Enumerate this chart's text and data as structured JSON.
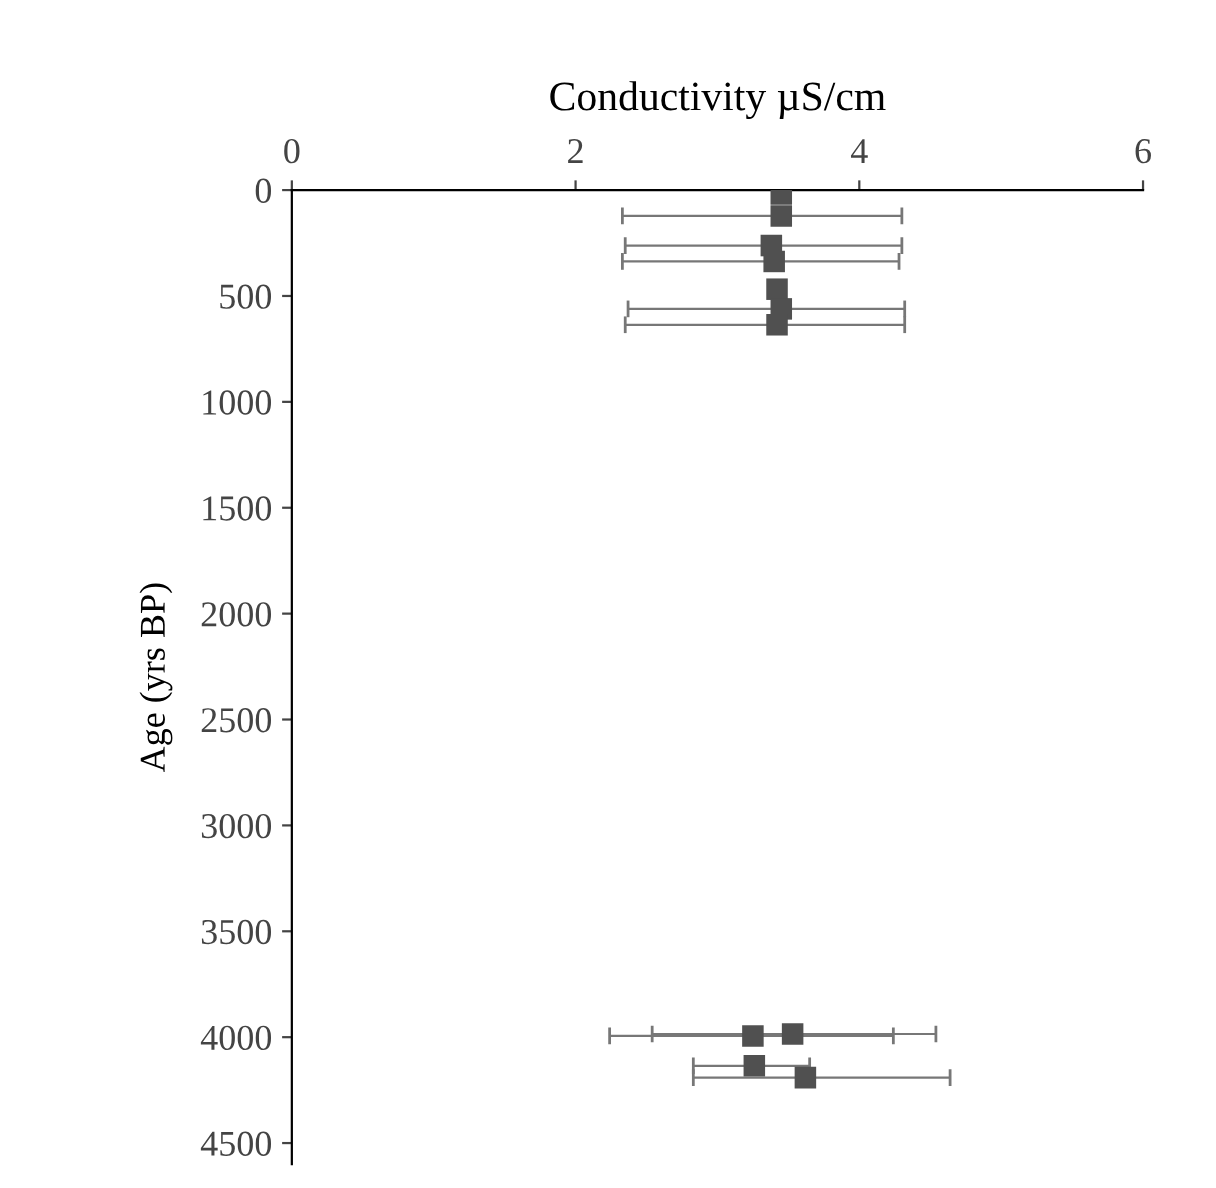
{
  "chart_data": {
    "type": "scatter",
    "xlabel": "Conductivity µS/cm",
    "ylabel": "Age (yrs BP)",
    "series": [
      {
        "color": "#505050",
        "marker": "square",
        "x": [
          3.45,
          3.45,
          3.38,
          3.4,
          3.42,
          3.45,
          3.42,
          3.25,
          3.53,
          3.26,
          3.62
        ],
        "values": [
          19,
          122,
          262,
          337,
          468,
          561,
          636,
          3994,
          3985,
          4135,
          4191
        ],
        "xerrors": [
          null,
          [
            2.33,
            4.3
          ],
          [
            2.35,
            4.3
          ],
          [
            2.33,
            4.28
          ],
          null,
          [
            2.37,
            4.32
          ],
          [
            2.35,
            4.32
          ],
          [
            2.24,
            4.24
          ],
          [
            2.54,
            4.54
          ],
          [
            2.83,
            3.65
          ],
          [
            2.83,
            4.64
          ]
        ]
      }
    ],
    "xlim": [
      0,
      6
    ],
    "xticks": [
      0,
      2,
      4,
      6
    ],
    "ylim": [
      4600,
      0
    ],
    "yticks": [
      0,
      500,
      1000,
      1500,
      2000,
      2500,
      3000,
      3500,
      4000,
      4500
    ],
    "grid": false,
    "legend": false
  }
}
